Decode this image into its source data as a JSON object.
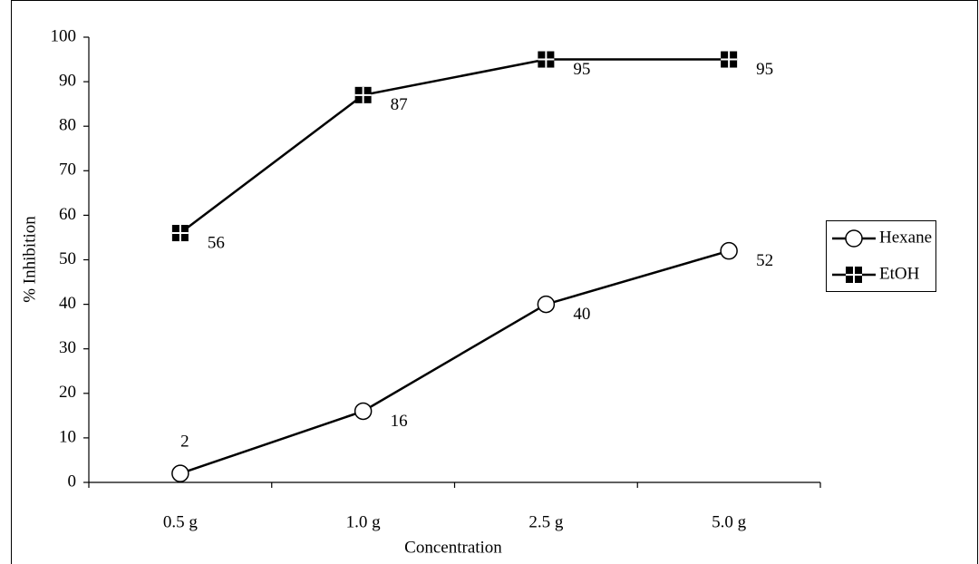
{
  "chart_data": {
    "type": "line",
    "y_label": "% Inhibition",
    "x_label": "Concentration",
    "categories": [
      "0.5 g",
      "1.0 g",
      "2.5 g",
      "5.0 g"
    ],
    "series": [
      {
        "name": "Hexane",
        "color": "#000000",
        "marker": "circle",
        "values": [
          2,
          16,
          40,
          52
        ]
      },
      {
        "name": "EtOH",
        "color": "#000000",
        "marker": "square-cross",
        "values": [
          56,
          87,
          95,
          95
        ]
      }
    ],
    "ylim": [
      0,
      100
    ],
    "yticks": [
      0,
      10,
      20,
      30,
      40,
      50,
      60,
      70,
      80,
      90,
      100
    ],
    "legend": "right",
    "data_labels": true
  }
}
